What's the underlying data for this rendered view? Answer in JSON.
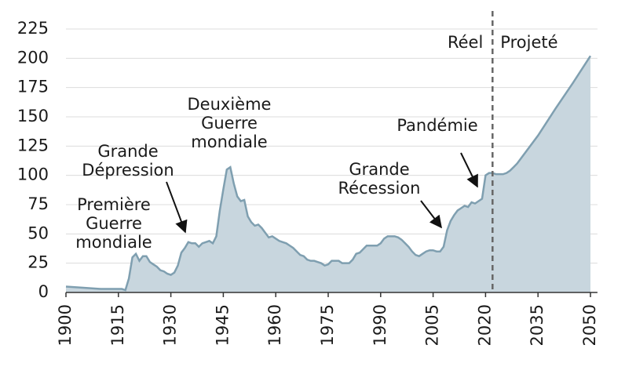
{
  "chart_data": {
    "type": "area",
    "x": [
      1900,
      1905,
      1910,
      1915,
      1916,
      1917,
      1918,
      1919,
      1920,
      1921,
      1922,
      1923,
      1924,
      1925,
      1926,
      1927,
      1928,
      1929,
      1930,
      1931,
      1932,
      1933,
      1934,
      1935,
      1936,
      1937,
      1938,
      1939,
      1940,
      1941,
      1942,
      1943,
      1944,
      1945,
      1946,
      1947,
      1948,
      1949,
      1950,
      1951,
      1952,
      1953,
      1954,
      1955,
      1956,
      1957,
      1958,
      1959,
      1960,
      1961,
      1962,
      1963,
      1964,
      1965,
      1966,
      1967,
      1968,
      1969,
      1970,
      1971,
      1972,
      1973,
      1974,
      1975,
      1976,
      1977,
      1978,
      1979,
      1980,
      1981,
      1982,
      1983,
      1984,
      1985,
      1986,
      1987,
      1988,
      1989,
      1990,
      1991,
      1992,
      1993,
      1994,
      1995,
      1996,
      1997,
      1998,
      1999,
      2000,
      2001,
      2002,
      2003,
      2004,
      2005,
      2006,
      2007,
      2008,
      2009,
      2010,
      2011,
      2012,
      2013,
      2014,
      2015,
      2016,
      2017,
      2018,
      2019,
      2020,
      2021,
      2022,
      2023,
      2024,
      2025,
      2026,
      2027,
      2028,
      2029,
      2030,
      2035,
      2040,
      2045,
      2050
    ],
    "values": [
      5,
      4,
      3,
      3,
      3,
      2,
      12,
      30,
      33,
      27,
      31,
      31,
      26,
      24,
      22,
      19,
      18,
      16,
      15,
      17,
      23,
      34,
      38,
      43,
      42,
      42,
      39,
      42,
      43,
      44,
      42,
      48,
      70,
      88,
      105,
      107,
      93,
      82,
      78,
      79,
      65,
      60,
      57,
      58,
      55,
      51,
      47,
      48,
      46,
      44,
      43,
      42,
      40,
      38,
      35,
      32,
      31,
      28,
      27,
      27,
      26,
      25,
      23,
      24,
      27,
      27,
      27,
      25,
      25,
      25,
      28,
      33,
      34,
      37,
      40,
      40,
      40,
      40,
      42,
      46,
      48,
      48,
      48,
      47,
      45,
      42,
      39,
      35,
      32,
      31,
      33,
      35,
      36,
      36,
      35,
      35,
      39,
      53,
      61,
      66,
      70,
      72,
      74,
      73,
      77,
      76,
      78,
      80,
      100,
      102,
      102,
      101,
      101,
      101,
      102,
      104,
      107,
      110,
      114,
      134,
      157,
      179,
      202
    ],
    "color": "#c8d6de",
    "line_color": "#7f9fb0",
    "xlim": [
      1900,
      2052
    ],
    "xticks": [
      1900,
      1915,
      1930,
      1945,
      1960,
      1975,
      1990,
      2005,
      2020,
      2035,
      2050
    ],
    "ylim": [
      0,
      240
    ],
    "yticks": [
      0,
      25,
      50,
      75,
      100,
      125,
      150,
      175,
      200,
      225
    ],
    "grid": true,
    "divider_x": 2022,
    "divider_labels": [
      "Réel",
      "Projeté"
    ],
    "annotations": [
      {
        "lines": [
          "Première",
          "Guerre",
          "mondiale"
        ]
      },
      {
        "lines": [
          "Grande",
          "Dépression"
        ]
      },
      {
        "lines": [
          "Deuxième",
          "Guerre",
          "mondiale"
        ]
      },
      {
        "lines": [
          "Grande",
          "Récession"
        ]
      },
      {
        "lines": [
          "Pandémie"
        ]
      }
    ]
  }
}
